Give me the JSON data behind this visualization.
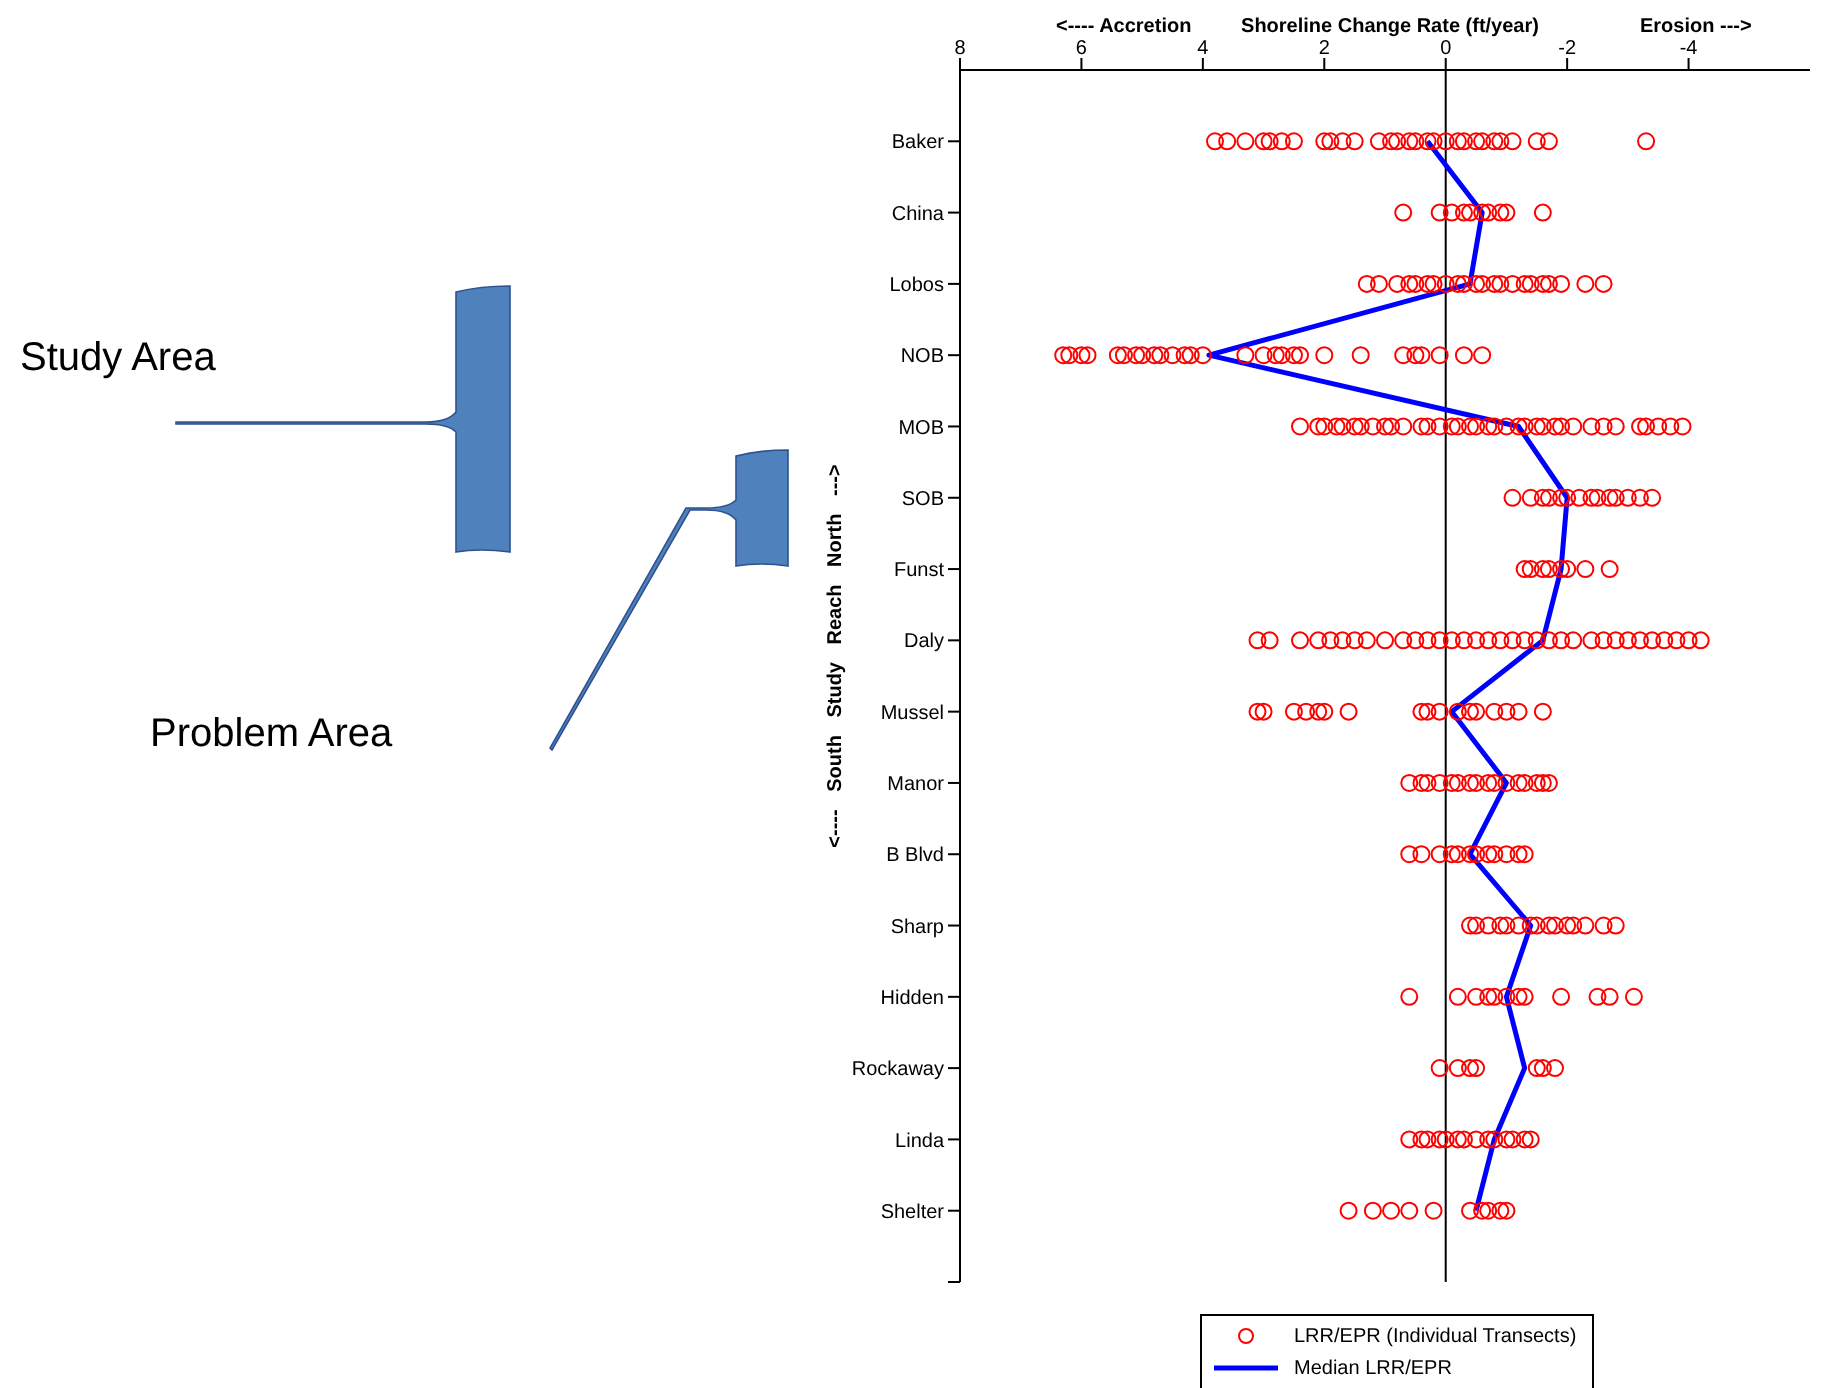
{
  "chart_data": {
    "type": "scatter",
    "orientation": "horizontal",
    "xlabel": "Shoreline Change Rate (ft/year)",
    "ylabel": "<---- South Study Reach North --->",
    "annotations": [
      "<---- Accretion",
      "Erosion --->",
      "Study Area",
      "Problem Area"
    ],
    "categories": [
      "Baker",
      "China",
      "Lobos",
      "NOB",
      "MOB",
      "SOB",
      "Funst",
      "Daly",
      "Mussel",
      "Manor",
      "B Blvd",
      "Sharp",
      "Hidden",
      "Rockaway",
      "Linda",
      "Shelter"
    ],
    "xlim": [
      8,
      -6
    ],
    "xticks": [
      8,
      6,
      4,
      2,
      0,
      -2,
      -4
    ],
    "legend": "bottom",
    "ref_lines": [
      {
        "axis": "x",
        "value": 0,
        "color": "#000000"
      }
    ],
    "series": [
      {
        "type": "scatter",
        "name": "LRR/EPR (Individual Transects)",
        "color": "#ff0000",
        "marker": "circle",
        "x": [
          "Baker",
          "Baker",
          "Baker",
          "Baker",
          "Baker",
          "Baker",
          "Baker",
          "Baker",
          "Baker",
          "Baker",
          "Baker",
          "Baker",
          "Baker",
          "Baker",
          "Baker",
          "Baker",
          "Baker",
          "Baker",
          "Baker",
          "Baker",
          "Baker",
          "Baker",
          "Baker",
          "Baker",
          "Baker",
          "Baker",
          "Baker",
          "Baker",
          "Baker",
          "China",
          "China",
          "China",
          "China",
          "China",
          "China",
          "China",
          "China",
          "China",
          "China",
          "Lobos",
          "Lobos",
          "Lobos",
          "Lobos",
          "Lobos",
          "Lobos",
          "Lobos",
          "Lobos",
          "Lobos",
          "Lobos",
          "Lobos",
          "Lobos",
          "Lobos",
          "Lobos",
          "Lobos",
          "Lobos",
          "Lobos",
          "Lobos",
          "Lobos",
          "Lobos",
          "Lobos",
          "Lobos",
          "NOB",
          "NOB",
          "NOB",
          "NOB",
          "NOB",
          "NOB",
          "NOB",
          "NOB",
          "NOB",
          "NOB",
          "NOB",
          "NOB",
          "NOB",
          "NOB",
          "NOB",
          "NOB",
          "NOB",
          "NOB",
          "NOB",
          "NOB",
          "NOB",
          "NOB",
          "NOB",
          "NOB",
          "NOB",
          "NOB",
          "NOB",
          "NOB",
          "MOB",
          "MOB",
          "MOB",
          "MOB",
          "MOB",
          "MOB",
          "MOB",
          "MOB",
          "MOB",
          "MOB",
          "MOB",
          "MOB",
          "MOB",
          "MOB",
          "MOB",
          "MOB",
          "MOB",
          "MOB",
          "MOB",
          "MOB",
          "MOB",
          "MOB",
          "MOB",
          "MOB",
          "MOB",
          "MOB",
          "MOB",
          "MOB",
          "MOB",
          "MOB",
          "MOB",
          "MOB",
          "MOB",
          "MOB",
          "MOB",
          "MOB",
          "SOB",
          "SOB",
          "SOB",
          "SOB",
          "SOB",
          "SOB",
          "SOB",
          "SOB",
          "SOB",
          "SOB",
          "SOB",
          "SOB",
          "SOB",
          "SOB",
          "Funst",
          "Funst",
          "Funst",
          "Funst",
          "Funst",
          "Funst",
          "Funst",
          "Funst",
          "Daly",
          "Daly",
          "Daly",
          "Daly",
          "Daly",
          "Daly",
          "Daly",
          "Daly",
          "Daly",
          "Daly",
          "Daly",
          "Daly",
          "Daly",
          "Daly",
          "Daly",
          "Daly",
          "Daly",
          "Daly",
          "Daly",
          "Daly",
          "Daly",
          "Daly",
          "Daly",
          "Daly",
          "Daly",
          "Daly",
          "Daly",
          "Daly",
          "Daly",
          "Daly",
          "Daly",
          "Daly",
          "Daly",
          "Daly",
          "Mussel",
          "Mussel",
          "Mussel",
          "Mussel",
          "Mussel",
          "Mussel",
          "Mussel",
          "Mussel",
          "Mussel",
          "Mussel",
          "Mussel",
          "Mussel",
          "Mussel",
          "Mussel",
          "Mussel",
          "Mussel",
          "Mussel",
          "Manor",
          "Manor",
          "Manor",
          "Manor",
          "Manor",
          "Manor",
          "Manor",
          "Manor",
          "Manor",
          "Manor",
          "Manor",
          "Manor",
          "Manor",
          "Manor",
          "Manor",
          "Manor",
          "B Blvd",
          "B Blvd",
          "B Blvd",
          "B Blvd",
          "B Blvd",
          "B Blvd",
          "B Blvd",
          "B Blvd",
          "B Blvd",
          "B Blvd",
          "B Blvd",
          "B Blvd",
          "Sharp",
          "Sharp",
          "Sharp",
          "Sharp",
          "Sharp",
          "Sharp",
          "Sharp",
          "Sharp",
          "Sharp",
          "Sharp",
          "Sharp",
          "Sharp",
          "Sharp",
          "Sharp",
          "Sharp",
          "Hidden",
          "Hidden",
          "Hidden",
          "Hidden",
          "Hidden",
          "Hidden",
          "Hidden",
          "Hidden",
          "Hidden",
          "Hidden",
          "Hidden",
          "Hidden",
          "Rockaway",
          "Rockaway",
          "Rockaway",
          "Rockaway",
          "Rockaway",
          "Rockaway",
          "Rockaway",
          "Linda",
          "Linda",
          "Linda",
          "Linda",
          "Linda",
          "Linda",
          "Linda",
          "Linda",
          "Linda",
          "Linda",
          "Linda",
          "Linda",
          "Linda",
          "Linda",
          "Shelter",
          "Shelter",
          "Shelter",
          "Shelter",
          "Shelter",
          "Shelter",
          "Shelter",
          "Shelter",
          "Shelter",
          "Shelter"
        ],
        "values": [
          3.8,
          3.6,
          3.3,
          3.0,
          2.9,
          2.7,
          2.5,
          2.0,
          1.9,
          1.7,
          1.5,
          1.1,
          0.9,
          0.8,
          0.6,
          0.5,
          0.3,
          0.2,
          0,
          -0.2,
          -0.3,
          -0.5,
          -0.6,
          -0.8,
          -0.9,
          -1.1,
          -1.5,
          -1.7,
          -3.3,
          0.7,
          0.1,
          -0.1,
          -0.3,
          -0.4,
          -0.6,
          -0.7,
          -0.9,
          -1.0,
          -1.6,
          1.3,
          1.1,
          0.8,
          0.6,
          0.5,
          0.3,
          0.2,
          0,
          -0.2,
          -0.3,
          -0.5,
          -0.6,
          -0.8,
          -0.9,
          -1.1,
          -1.3,
          -1.4,
          -1.6,
          -1.7,
          -1.9,
          -2.3,
          -2.6,
          6.3,
          6.2,
          6.0,
          5.9,
          5.4,
          5.3,
          5.1,
          5.0,
          4.8,
          4.7,
          4.5,
          4.3,
          4.2,
          4.0,
          3.3,
          3.0,
          2.8,
          2.7,
          2.5,
          2.4,
          2.0,
          1.4,
          0.7,
          0.5,
          0.4,
          0.1,
          -0.3,
          -0.6,
          2.4,
          2.1,
          2.0,
          1.8,
          1.7,
          1.5,
          1.4,
          1.2,
          1.0,
          0.9,
          0.7,
          0.4,
          0.3,
          0.1,
          -0.1,
          -0.2,
          -0.4,
          -0.5,
          -0.7,
          -0.8,
          -1.0,
          -1.2,
          -1.3,
          -1.5,
          -1.6,
          -1.8,
          -1.9,
          -2.1,
          -2.4,
          -2.6,
          -2.8,
          -3.2,
          -3.3,
          -3.5,
          -3.7,
          -3.9,
          -1.1,
          -1.4,
          -1.6,
          -1.7,
          -1.9,
          -2.0,
          -2.2,
          -2.4,
          -2.5,
          -2.7,
          -2.8,
          -3.0,
          -3.2,
          -3.4,
          -1.3,
          -1.4,
          -1.6,
          -1.7,
          -1.9,
          -2.0,
          -2.3,
          -2.7,
          3.1,
          2.9,
          2.4,
          2.1,
          1.9,
          1.7,
          1.5,
          1.3,
          1.0,
          0.7,
          0.5,
          0.3,
          0.1,
          -0.1,
          -0.3,
          -0.5,
          -0.7,
          -0.9,
          -1.1,
          -1.3,
          -1.5,
          -1.7,
          -1.9,
          -2.1,
          -2.4,
          -2.6,
          -2.8,
          -3.0,
          -3.2,
          -3.4,
          -3.6,
          -3.8,
          -4.0,
          -4.2,
          3.1,
          3.0,
          2.5,
          2.3,
          2.1,
          2.0,
          1.6,
          0.4,
          0.3,
          0.1,
          -0.2,
          -0.4,
          -0.5,
          -0.8,
          -1.0,
          -1.2,
          -1.6,
          0.6,
          0.4,
          0.3,
          0.1,
          -0.1,
          -0.2,
          -0.4,
          -0.5,
          -0.7,
          -0.8,
          -1.0,
          -1.2,
          -1.3,
          -1.5,
          -1.6,
          -1.7,
          0.6,
          0.4,
          0.1,
          -0.1,
          -0.2,
          -0.4,
          -0.5,
          -0.7,
          -0.8,
          -1.0,
          -1.2,
          -1.3,
          -0.4,
          -0.5,
          -0.7,
          -0.9,
          -1.0,
          -1.2,
          -1.4,
          -1.5,
          -1.7,
          -1.8,
          -2.0,
          -2.1,
          -2.3,
          -2.6,
          -2.8,
          0.6,
          -0.2,
          -0.5,
          -0.7,
          -0.8,
          -1.0,
          -1.2,
          -1.3,
          -1.9,
          -2.5,
          -2.7,
          -3.1,
          0.1,
          -0.2,
          -0.4,
          -0.5,
          -1.5,
          -1.6,
          -1.8,
          0.6,
          0.4,
          0.3,
          0.1,
          0,
          -0.2,
          -0.3,
          -0.5,
          -0.7,
          -0.8,
          -1.0,
          -1.1,
          -1.3,
          -1.4,
          1.6,
          1.2,
          0.9,
          0.6,
          0.2,
          -0.4,
          -0.6,
          -0.7,
          -0.9,
          -1.0
        ]
      },
      {
        "type": "line",
        "name": "Median LRR/EPR",
        "color": "#0000ff",
        "marker": "none",
        "values": [
          0.3,
          -0.6,
          -0.4,
          3.9,
          -1.2,
          -2.0,
          -1.9,
          -1.6,
          -0.1,
          -1.0,
          -0.4,
          -1.4,
          -1.0,
          -1.3,
          -0.8,
          -0.5
        ]
      }
    ]
  }
}
